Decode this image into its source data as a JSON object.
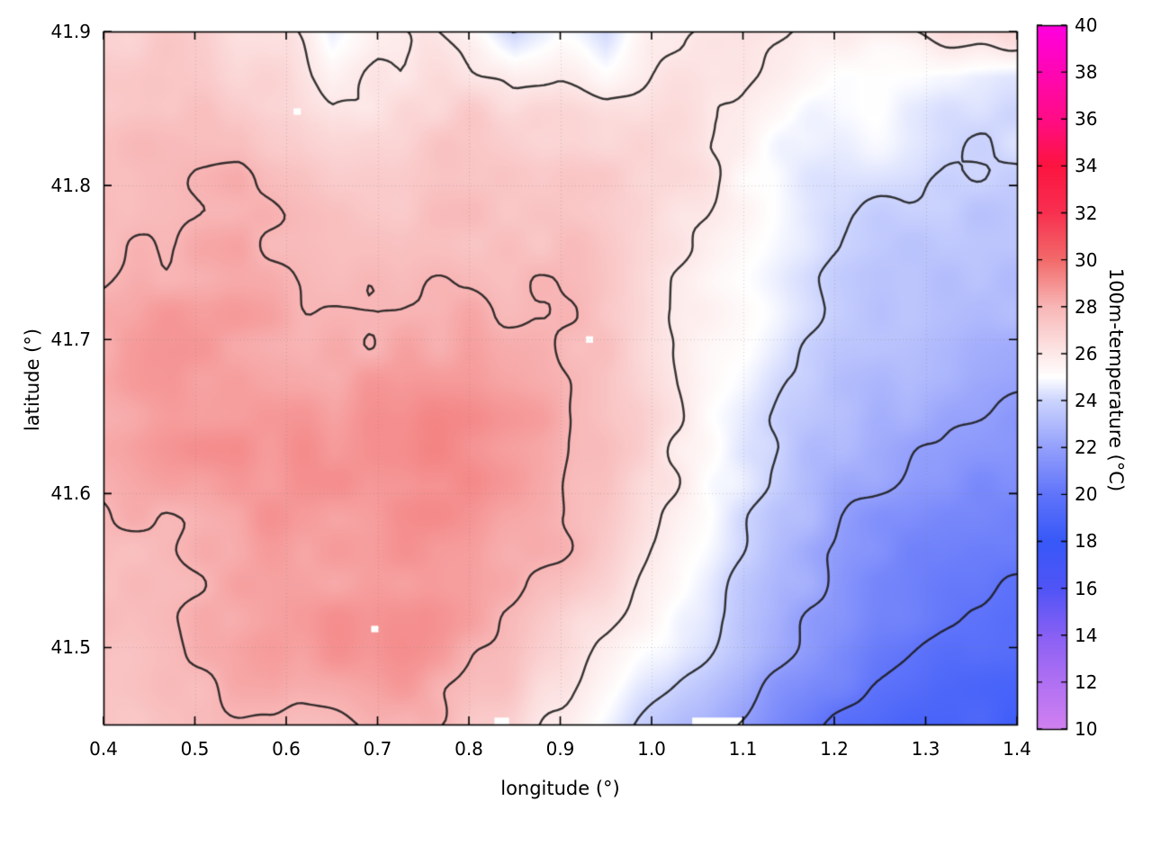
{
  "chart_data": {
    "type": "heatmap",
    "title": "",
    "xlabel": "longitude (°)",
    "ylabel": "latitude (°)",
    "colorbar_label": "100m-temperature (°C)",
    "xlim": [
      0.4,
      1.4
    ],
    "ylim": [
      41.45,
      41.9
    ],
    "xticks": [
      0.4,
      0.5,
      0.6,
      0.7,
      0.8,
      0.9,
      1.0,
      1.1,
      1.2,
      1.3,
      1.4
    ],
    "xtick_labels": [
      "0.4",
      "0.5",
      "0.6",
      "0.7",
      "0.8",
      "0.9",
      "1.0",
      "1.1",
      "1.2",
      "1.3",
      "1.4"
    ],
    "yticks": [
      41.5,
      41.6,
      41.7,
      41.8,
      41.9
    ],
    "ytick_labels": [
      "41.5",
      "41.6",
      "41.7",
      "41.8",
      "41.9"
    ],
    "grid_on": true,
    "contour_levels": [
      20,
      22,
      24,
      26,
      28
    ],
    "contour_color": "rgba(25,25,25,0.88)",
    "colorbar": {
      "min": 10,
      "max": 40,
      "ticks": [
        10,
        12,
        14,
        16,
        18,
        20,
        22,
        24,
        26,
        28,
        30,
        32,
        34,
        36,
        38,
        40
      ],
      "tick_labels": [
        "10",
        "12",
        "14",
        "16",
        "18",
        "20",
        "22",
        "24",
        "26",
        "28",
        "30",
        "32",
        "34",
        "36",
        "38",
        "40"
      ],
      "palette": [
        [
          10,
          "#d080f0"
        ],
        [
          12,
          "#b070f2"
        ],
        [
          14,
          "#8860f4"
        ],
        [
          16,
          "#5054f6"
        ],
        [
          18,
          "#3858f8"
        ],
        [
          20,
          "#6074fa"
        ],
        [
          22,
          "#94a0fb"
        ],
        [
          24,
          "#ccd4fd"
        ],
        [
          25,
          "#ffffff"
        ],
        [
          26,
          "#fde8e8"
        ],
        [
          28,
          "#f8b6b6"
        ],
        [
          30,
          "#f26a6a"
        ],
        [
          32,
          "#f83050"
        ],
        [
          34,
          "#fc1440"
        ],
        [
          36,
          "#ff0c86"
        ],
        [
          38,
          "#ff06b4"
        ],
        [
          40,
          "#ff00e0"
        ]
      ]
    },
    "grid": {
      "x0": 0.4,
      "x1": 1.4,
      "y0": 41.45,
      "y1": 41.9,
      "nx": 21,
      "ny": 16,
      "row_order": "north-to-south",
      "values": [
        [
          27.0,
          27.0,
          26.8,
          26.5,
          26.3,
          24.8,
          26.0,
          26.3,
          25.5,
          24.2,
          25.0,
          24.5,
          26.0,
          26.3,
          26.5,
          26.3,
          26.0,
          26.2,
          26.4,
          26.5,
          26.3
        ],
        [
          27.2,
          27.3,
          27.0,
          26.8,
          26.5,
          25.5,
          26.2,
          26.5,
          26.5,
          25.8,
          26.0,
          25.5,
          26.2,
          26.4,
          26.2,
          25.8,
          25.2,
          25.0,
          24.8,
          24.6,
          24.4
        ],
        [
          27.5,
          27.6,
          27.4,
          27.6,
          27.2,
          26.5,
          26.8,
          27.0,
          27.2,
          26.8,
          26.5,
          26.3,
          26.4,
          26.3,
          25.8,
          25.3,
          24.8,
          24.6,
          24.4,
          24.3,
          24.2
        ],
        [
          27.6,
          27.8,
          27.8,
          28.0,
          27.5,
          27.2,
          27.3,
          27.5,
          27.6,
          27.3,
          27.0,
          26.8,
          26.5,
          26.2,
          25.6,
          25.0,
          24.5,
          24.3,
          24.2,
          24.1,
          24.0
        ],
        [
          27.8,
          28.0,
          28.0,
          28.2,
          27.8,
          27.6,
          27.6,
          27.8,
          27.8,
          27.5,
          27.3,
          27.0,
          26.6,
          26.1,
          25.4,
          24.7,
          24.1,
          23.9,
          23.8,
          23.7,
          23.6
        ],
        [
          27.8,
          28.1,
          28.2,
          28.3,
          28.0,
          27.8,
          27.8,
          28.0,
          28.0,
          27.8,
          27.5,
          27.2,
          26.7,
          26.1,
          25.2,
          24.5,
          23.9,
          23.6,
          23.5,
          23.4,
          23.2
        ],
        [
          27.9,
          28.2,
          28.3,
          28.4,
          28.2,
          28.0,
          28.0,
          28.2,
          28.3,
          28.0,
          27.7,
          27.3,
          26.7,
          26.0,
          25.1,
          24.3,
          23.7,
          23.3,
          23.1,
          23.0,
          22.8
        ],
        [
          28.0,
          28.3,
          28.4,
          28.5,
          28.4,
          28.2,
          28.3,
          28.5,
          28.5,
          28.2,
          27.8,
          27.3,
          26.6,
          25.8,
          24.9,
          24.0,
          23.3,
          23.0,
          22.8,
          22.6,
          22.4
        ],
        [
          28.0,
          28.3,
          28.5,
          28.6,
          28.5,
          28.4,
          28.6,
          28.8,
          28.7,
          28.4,
          27.9,
          27.3,
          26.5,
          25.6,
          24.6,
          23.7,
          23.0,
          22.6,
          22.3,
          22.1,
          21.9
        ],
        [
          28.0,
          28.3,
          28.5,
          28.6,
          28.6,
          28.6,
          28.8,
          29.0,
          28.9,
          28.5,
          28.0,
          27.3,
          26.4,
          25.4,
          24.4,
          23.4,
          22.7,
          22.2,
          21.8,
          21.6,
          21.4
        ],
        [
          27.9,
          28.2,
          28.4,
          28.6,
          28.6,
          28.7,
          28.9,
          29.1,
          29.0,
          28.6,
          28.0,
          27.2,
          26.2,
          25.2,
          24.1,
          23.1,
          22.3,
          21.8,
          21.4,
          21.1,
          20.9
        ],
        [
          27.8,
          28.1,
          28.3,
          28.5,
          28.6,
          28.7,
          29.0,
          29.1,
          29.0,
          28.5,
          27.9,
          27.0,
          26.0,
          24.9,
          23.8,
          22.8,
          22.0,
          21.4,
          21.0,
          20.7,
          20.5
        ],
        [
          27.6,
          28.0,
          28.2,
          28.4,
          28.5,
          28.6,
          28.9,
          29.0,
          28.8,
          28.3,
          27.6,
          26.7,
          25.6,
          24.5,
          23.4,
          22.4,
          21.6,
          21.0,
          20.5,
          20.2,
          20.0
        ],
        [
          27.5,
          27.8,
          28.0,
          28.2,
          28.3,
          28.5,
          28.7,
          28.8,
          28.6,
          28.0,
          27.2,
          26.2,
          25.1,
          24.0,
          22.9,
          21.9,
          21.1,
          20.4,
          20.0,
          19.7,
          19.5
        ],
        [
          27.3,
          27.6,
          27.8,
          28.0,
          28.1,
          28.3,
          28.5,
          28.5,
          28.2,
          27.6,
          26.7,
          25.6,
          24.5,
          23.4,
          22.3,
          21.3,
          20.5,
          19.9,
          19.4,
          19.1,
          18.9
        ],
        [
          27.2,
          27.4,
          27.6,
          27.8,
          27.9,
          28.0,
          28.2,
          28.2,
          27.8,
          27.1,
          26.1,
          25.0,
          23.9,
          22.8,
          21.7,
          20.7,
          19.9,
          19.2,
          18.8,
          18.5,
          18.3
        ]
      ]
    },
    "missing_cells": [
      [
        0.612,
        41.848,
        0.008,
        0.0042
      ],
      [
        0.932,
        41.7,
        0.008,
        0.0042
      ],
      [
        0.697,
        41.512,
        0.008,
        0.0042
      ],
      [
        1.072,
        41.452,
        0.055,
        0.005
      ],
      [
        0.836,
        41.452,
        0.016,
        0.005
      ]
    ]
  }
}
